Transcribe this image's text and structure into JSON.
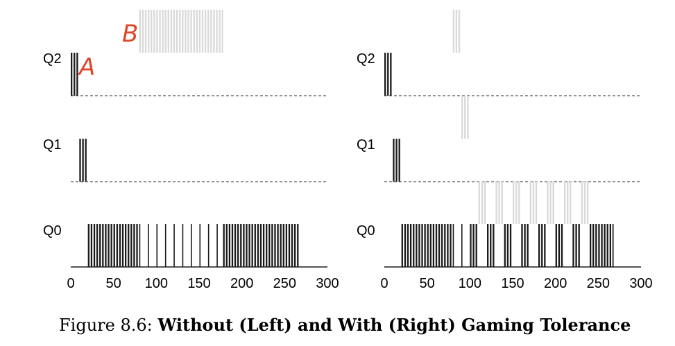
{
  "chart_data": [
    {
      "type": "timeline",
      "queues": [
        "Q2",
        "Q1",
        "Q0"
      ],
      "xlim": [
        0,
        300
      ],
      "xticks": [
        "0",
        "50",
        "100",
        "150",
        "200",
        "250",
        "300"
      ],
      "annotations": [
        "A",
        "B"
      ],
      "colors": {
        "jobA": "#1a1a1a",
        "jobB": "#d9d9d9"
      },
      "segments": [
        {
          "queue": "Q2",
          "job": "A",
          "start": 0,
          "end": 10
        },
        {
          "queue": "Q1",
          "job": "A",
          "start": 10,
          "end": 20
        },
        {
          "queue": "Q0",
          "job": "A",
          "start": 20,
          "end": 80
        },
        {
          "queue": "Q2",
          "job": "B",
          "start": 80,
          "end": 178,
          "row": "above"
        },
        {
          "queue": "Q0",
          "job": "A",
          "start": 80,
          "end": 178,
          "pattern": "stripes"
        },
        {
          "queue": "Q0",
          "job": "A",
          "start": 178,
          "end": 268
        }
      ]
    },
    {
      "type": "timeline",
      "queues": [
        "Q2",
        "Q1",
        "Q0"
      ],
      "xlim": [
        0,
        300
      ],
      "xticks": [
        "0",
        "50",
        "100",
        "150",
        "200",
        "250",
        "300"
      ],
      "colors": {
        "jobA": "#1a1a1a",
        "jobB": "#d9d9d9"
      },
      "segments": [
        {
          "queue": "Q2",
          "job": "A",
          "start": 0,
          "end": 10
        },
        {
          "queue": "Q1",
          "job": "A",
          "start": 10,
          "end": 20
        },
        {
          "queue": "Q0",
          "job": "A",
          "start": 20,
          "end": 80
        },
        {
          "queue": "Q2",
          "job": "B",
          "start": 80,
          "end": 90,
          "row": "above"
        },
        {
          "queue": "Q0",
          "job": "A",
          "start": 80,
          "end": 90,
          "pattern": "stripes"
        },
        {
          "queue": "Q1",
          "job": "B",
          "start": 90,
          "end": 100,
          "row": "above"
        },
        {
          "queue": "Q0",
          "job": "A",
          "start": 90,
          "end": 100,
          "pattern": "stripes"
        },
        {
          "queue": "Q0",
          "job": "A",
          "start": 100,
          "end": 110
        },
        {
          "queue": "Q0",
          "job": "B",
          "start": 110,
          "end": 120,
          "row": "above"
        },
        {
          "queue": "Q0",
          "job": "A",
          "start": 120,
          "end": 130
        },
        {
          "queue": "Q0",
          "job": "B",
          "start": 130,
          "end": 140,
          "row": "above"
        },
        {
          "queue": "Q0",
          "job": "A",
          "start": 140,
          "end": 150
        },
        {
          "queue": "Q0",
          "job": "B",
          "start": 150,
          "end": 160,
          "row": "above"
        },
        {
          "queue": "Q0",
          "job": "A",
          "start": 160,
          "end": 170
        },
        {
          "queue": "Q0",
          "job": "B",
          "start": 170,
          "end": 180,
          "row": "above"
        },
        {
          "queue": "Q0",
          "job": "A",
          "start": 180,
          "end": 190
        },
        {
          "queue": "Q0",
          "job": "B",
          "start": 190,
          "end": 200,
          "row": "above"
        },
        {
          "queue": "Q0",
          "job": "A",
          "start": 200,
          "end": 210
        },
        {
          "queue": "Q0",
          "job": "B",
          "start": 210,
          "end": 220,
          "row": "above"
        },
        {
          "queue": "Q0",
          "job": "A",
          "start": 220,
          "end": 230
        },
        {
          "queue": "Q0",
          "job": "B",
          "start": 230,
          "end": 240,
          "row": "above"
        },
        {
          "queue": "Q0",
          "job": "A",
          "start": 240,
          "end": 268
        }
      ]
    }
  ],
  "caption": {
    "prefix": "Figure 8.6: ",
    "title": "Without (Left) and With (Right) Gaming Tolerance"
  }
}
